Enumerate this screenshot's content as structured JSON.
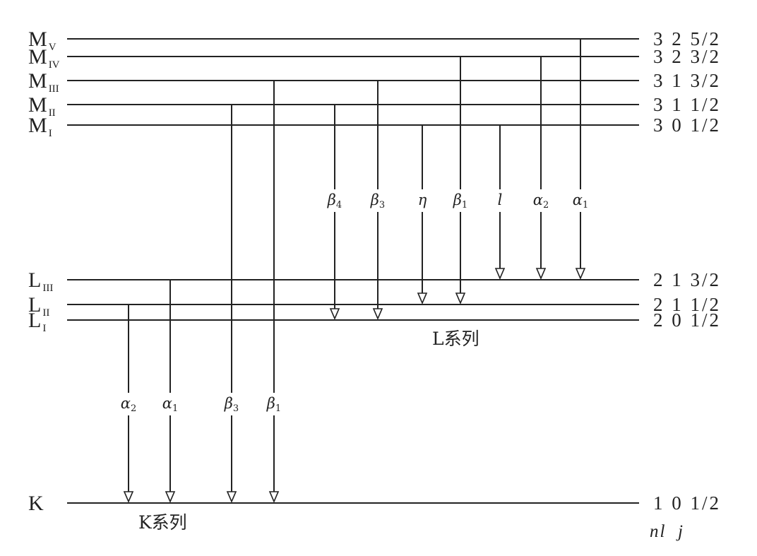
{
  "levels": [
    {
      "id": "MV",
      "main": "M",
      "sub": "V",
      "qn": "3 2 5/2"
    },
    {
      "id": "MIV",
      "main": "M",
      "sub": "IV",
      "qn": "3 2 3/2"
    },
    {
      "id": "MIII",
      "main": "M",
      "sub": "III",
      "qn": "3 1 3/2"
    },
    {
      "id": "MII",
      "main": "M",
      "sub": "II",
      "qn": "3 1 1/2"
    },
    {
      "id": "MI",
      "main": "M",
      "sub": "I",
      "qn": "3 0 1/2"
    },
    {
      "id": "LIII",
      "main": "L",
      "sub": "III",
      "qn": "2 1 3/2"
    },
    {
      "id": "LII",
      "main": "L",
      "sub": "II",
      "qn": "2 1 1/2"
    },
    {
      "id": "LI",
      "main": "L",
      "sub": "I",
      "qn": "2 0 1/2"
    },
    {
      "id": "K",
      "main": "K",
      "sub": "",
      "qn": "1 0 1/2"
    }
  ],
  "transitions": [
    {
      "id": "K-alpha2",
      "symbol": "α",
      "sub": "2",
      "from": "LII",
      "to": "K"
    },
    {
      "id": "K-alpha1",
      "symbol": "α",
      "sub": "1",
      "from": "LIII",
      "to": "K"
    },
    {
      "id": "K-beta3",
      "symbol": "β",
      "sub": "3",
      "from": "MII",
      "to": "K"
    },
    {
      "id": "K-beta1",
      "symbol": "β",
      "sub": "1",
      "from": "MIII",
      "to": "K"
    },
    {
      "id": "L-beta4",
      "symbol": "β",
      "sub": "4",
      "from": "MII",
      "to": "LI"
    },
    {
      "id": "L-beta3",
      "symbol": "β",
      "sub": "3",
      "from": "MIII",
      "to": "LI"
    },
    {
      "id": "L-eta",
      "symbol": "η",
      "sub": "",
      "from": "MI",
      "to": "LII"
    },
    {
      "id": "L-beta1",
      "symbol": "β",
      "sub": "1",
      "from": "MIV",
      "to": "LII"
    },
    {
      "id": "L-l",
      "symbol": "l",
      "sub": "",
      "from": "MI",
      "to": "LIII"
    },
    {
      "id": "L-alpha2",
      "symbol": "α",
      "sub": "2",
      "from": "MIV",
      "to": "LIII"
    },
    {
      "id": "L-alpha1",
      "symbol": "α",
      "sub": "1",
      "from": "MV",
      "to": "LIII"
    }
  ],
  "series_labels": {
    "k": "K系列",
    "l": "L系列"
  },
  "quantum_header": "nl  j"
}
